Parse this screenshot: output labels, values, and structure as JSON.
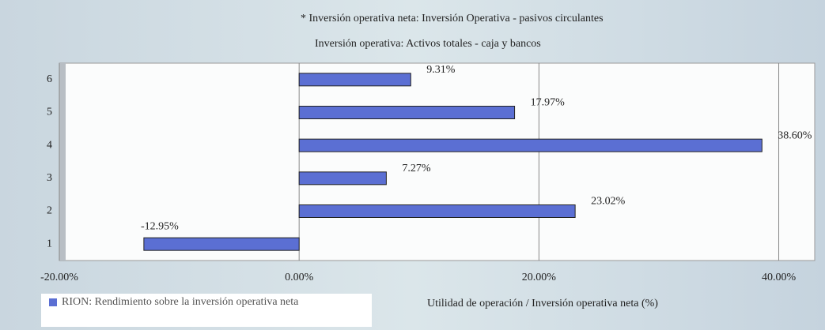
{
  "chart_data": {
    "type": "bar",
    "orientation": "horizontal",
    "title": "* Inversión operativa neta: Inversión Operativa - pasivos circulantes",
    "subtitle": "Inversión operativa: Activos totales - caja y bancos",
    "x_label": "Utilidad de operación / Inversión operativa neta (%)",
    "categories": [
      "1",
      "2",
      "3",
      "4",
      "5",
      "6"
    ],
    "series": [
      {
        "name": "RION: Rendimiento sobre la inversión operativa neta",
        "color": "#5b6fd3",
        "values": [
          -12.95,
          23.02,
          7.27,
          38.6,
          17.97,
          9.31
        ],
        "value_labels": [
          "-12.95%",
          "23.02%",
          "7.27%",
          "38.60%",
          "17.97%",
          "9.31%"
        ]
      }
    ],
    "xlim": [
      -20,
      43
    ],
    "xticks": [
      {
        "value": -20,
        "label": "-20.00%"
      },
      {
        "value": 0,
        "label": "0.00%"
      },
      {
        "value": 20,
        "label": "20.00%"
      },
      {
        "value": 40,
        "label": "40.00%"
      }
    ],
    "grid": true,
    "legend": "bottom-left"
  }
}
